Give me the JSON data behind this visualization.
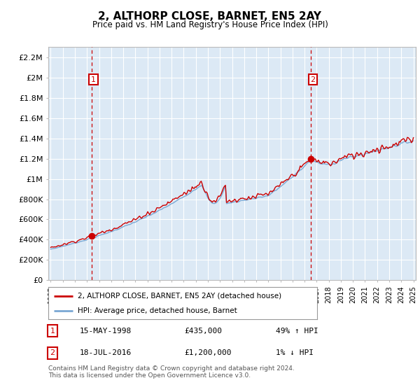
{
  "title": "2, ALTHORP CLOSE, BARNET, EN5 2AY",
  "subtitle": "Price paid vs. HM Land Registry's House Price Index (HPI)",
  "plot_bg_color": "#dce9f5",
  "hpi_color": "#7aa8d4",
  "sale_color": "#cc0000",
  "dashed_color": "#cc0000",
  "ylim": [
    0,
    2300000
  ],
  "yticks": [
    0,
    200000,
    400000,
    600000,
    800000,
    1000000,
    1200000,
    1400000,
    1600000,
    1800000,
    2000000,
    2200000
  ],
  "ytick_labels": [
    "£0",
    "£200K",
    "£400K",
    "£600K",
    "£800K",
    "£1M",
    "£1.2M",
    "£1.4M",
    "£1.6M",
    "£1.8M",
    "£2M",
    "£2.2M"
  ],
  "sale1_date": 1998.37,
  "sale1_price": 435000,
  "sale2_date": 2016.54,
  "sale2_price": 1200000,
  "xlim_min": 1994.8,
  "xlim_max": 2025.2,
  "legend_sale_label": "2, ALTHORP CLOSE, BARNET, EN5 2AY (detached house)",
  "legend_hpi_label": "HPI: Average price, detached house, Barnet",
  "annotation1_label": "1",
  "annotation1_date": "15-MAY-1998",
  "annotation1_price": "£435,000",
  "annotation1_hpi": "49% ↑ HPI",
  "annotation2_label": "2",
  "annotation2_date": "18-JUL-2016",
  "annotation2_price": "£1,200,000",
  "annotation2_hpi": "1% ↓ HPI",
  "footer": "Contains HM Land Registry data © Crown copyright and database right 2024.\nThis data is licensed under the Open Government Licence v3.0."
}
